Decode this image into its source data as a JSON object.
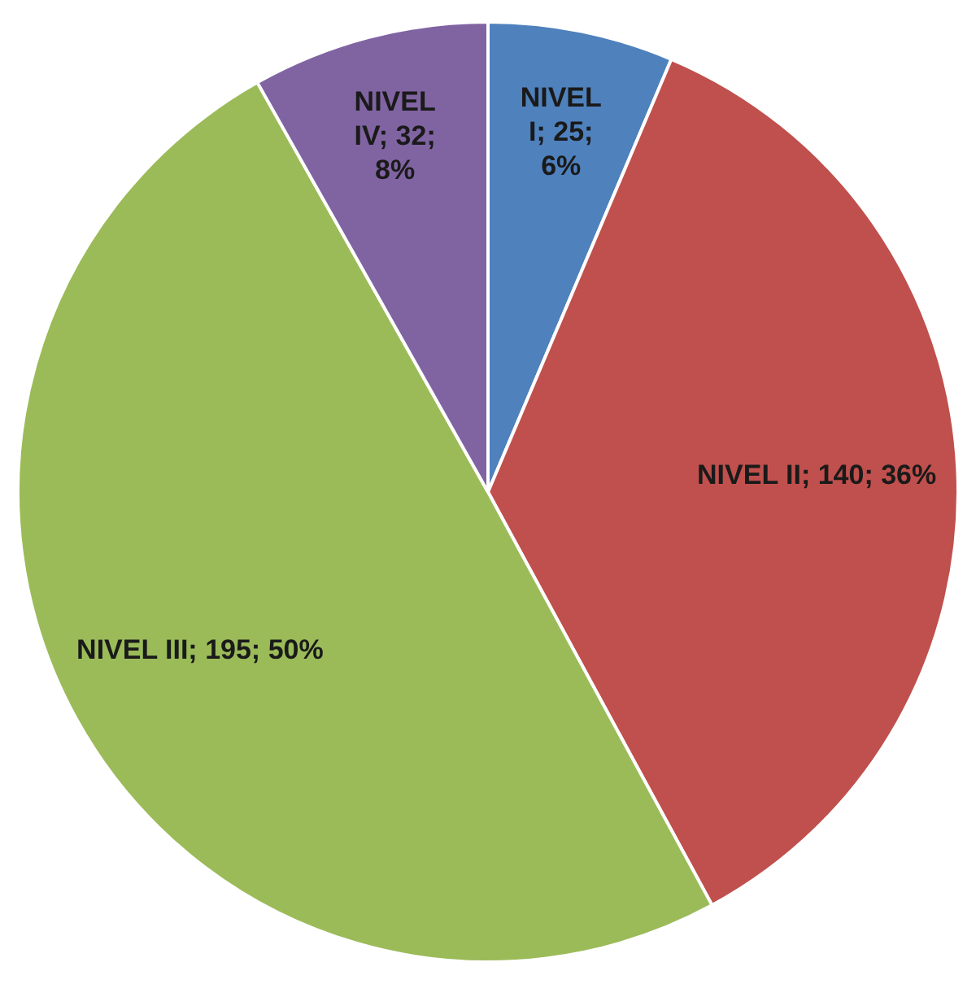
{
  "chart_data": {
    "type": "pie",
    "categories": [
      "NIVEL I",
      "NIVEL II",
      "NIVEL III",
      "NIVEL IV"
    ],
    "values": [
      25,
      140,
      195,
      32
    ],
    "value_labels": [
      "25; 6%",
      "140; 36%",
      "195; 50%",
      "32; 8%"
    ],
    "colors": [
      "#4f81bd",
      "#c0504d",
      "#9bbb59",
      "#8064a2"
    ],
    "legend": false
  }
}
